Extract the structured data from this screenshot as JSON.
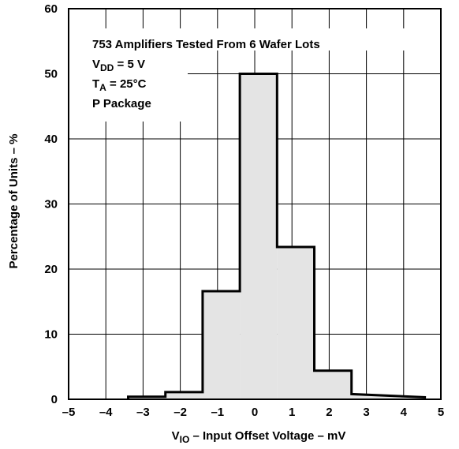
{
  "chart_data": {
    "type": "bar",
    "title": "",
    "xlabel": {
      "main": "V",
      "sub": "IO",
      "rest": " – Input Offset Voltage – mV"
    },
    "ylabel": "Percentage of Units – %",
    "xlim": [
      -5,
      5
    ],
    "ylim": [
      0,
      60
    ],
    "x_ticks": [
      -5,
      -4,
      -3,
      -2,
      -1,
      0,
      1,
      2,
      3,
      4,
      5
    ],
    "x_tick_labels": [
      "–5",
      "–4",
      "–3",
      "–2",
      "–1",
      "0",
      "1",
      "2",
      "3",
      "4",
      "5"
    ],
    "y_ticks": [
      0,
      10,
      20,
      30,
      40,
      50,
      60
    ],
    "y_tick_labels": [
      "0",
      "10",
      "20",
      "30",
      "40",
      "50",
      "60"
    ],
    "grid": true,
    "fill_color": "#e4e4e4",
    "line_color": "#000000",
    "bins": [
      {
        "x0": -3.4,
        "x1": -2.4,
        "value": 0.4
      },
      {
        "x0": -2.4,
        "x1": -1.4,
        "value": 1.1
      },
      {
        "x0": -1.4,
        "x1": -0.4,
        "value": 16.6
      },
      {
        "x0": -0.4,
        "x1": 0.6,
        "value": 50
      },
      {
        "x0": 0.6,
        "x1": 1.6,
        "value": 23.4
      },
      {
        "x0": 1.6,
        "x1": 2.6,
        "value": 4.4
      },
      {
        "x0": 2.6,
        "x1": 4.6,
        "value": 0.8,
        "end_value": 0.3
      }
    ],
    "annotations": [
      {
        "main": "753 Amplifiers Tested From 6 Wafer Lots",
        "sub": "",
        "rest": ""
      },
      {
        "main": "V",
        "sub": "DD",
        "rest": " = 5 V"
      },
      {
        "main": "T",
        "sub": "A",
        "rest": " = 25°C"
      },
      {
        "main": "P Package",
        "sub": "",
        "rest": ""
      }
    ]
  }
}
